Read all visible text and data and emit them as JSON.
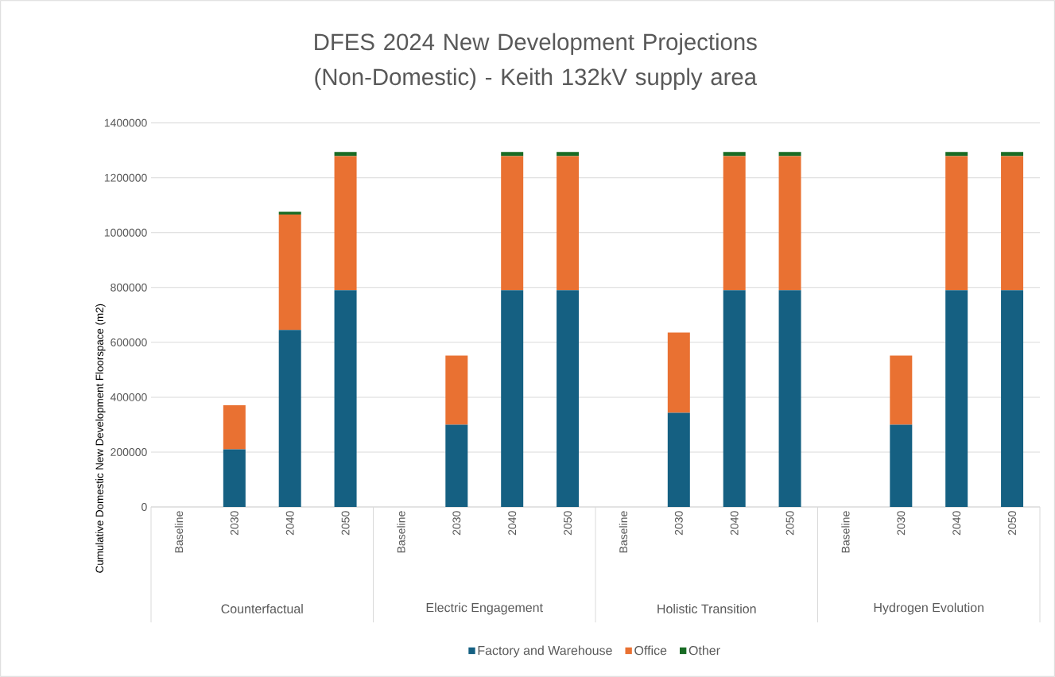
{
  "chart_data": {
    "type": "bar",
    "stacked": true,
    "title": "DFES 2024 New Development Projections (Non-Domestic) - Keith 132kV supply area",
    "ylabel": "Cumulative Domestic New Development Floorspace (m2)",
    "categories": [
      "Baseline",
      "2030",
      "2040",
      "2050",
      "Baseline",
      "2030",
      "2040",
      "2050",
      "Baseline",
      "2030",
      "2040",
      "2050",
      "Baseline",
      "2030",
      "2040",
      "2050"
    ],
    "annotations": [
      "Counterfactual",
      "Electric Engagement",
      "Holistic Transition",
      "Hydrogen Evolution"
    ],
    "series": [
      {
        "name": "Factory and Warehouse",
        "color": "#156082",
        "values": [
          0,
          210000,
          645000,
          790000,
          0,
          300000,
          790000,
          790000,
          0,
          343000,
          790000,
          790000,
          0,
          300000,
          790000,
          790000
        ]
      },
      {
        "name": "Office",
        "color": "#e97132",
        "values": [
          0,
          161000,
          421000,
          489000,
          0,
          252000,
          489000,
          489000,
          0,
          293000,
          489000,
          489000,
          0,
          252000,
          489000,
          489000
        ]
      },
      {
        "name": "Other",
        "color": "#196b24",
        "values": [
          0,
          0,
          10000,
          15000,
          0,
          0,
          15000,
          15000,
          0,
          0,
          15000,
          15000,
          0,
          0,
          15000,
          15000
        ]
      }
    ],
    "ylim": [
      0,
      1400000
    ],
    "yticks": [
      0,
      200000,
      400000,
      600000,
      800000,
      1000000,
      1200000,
      1400000
    ],
    "grid": "y",
    "legend": "bottom"
  }
}
